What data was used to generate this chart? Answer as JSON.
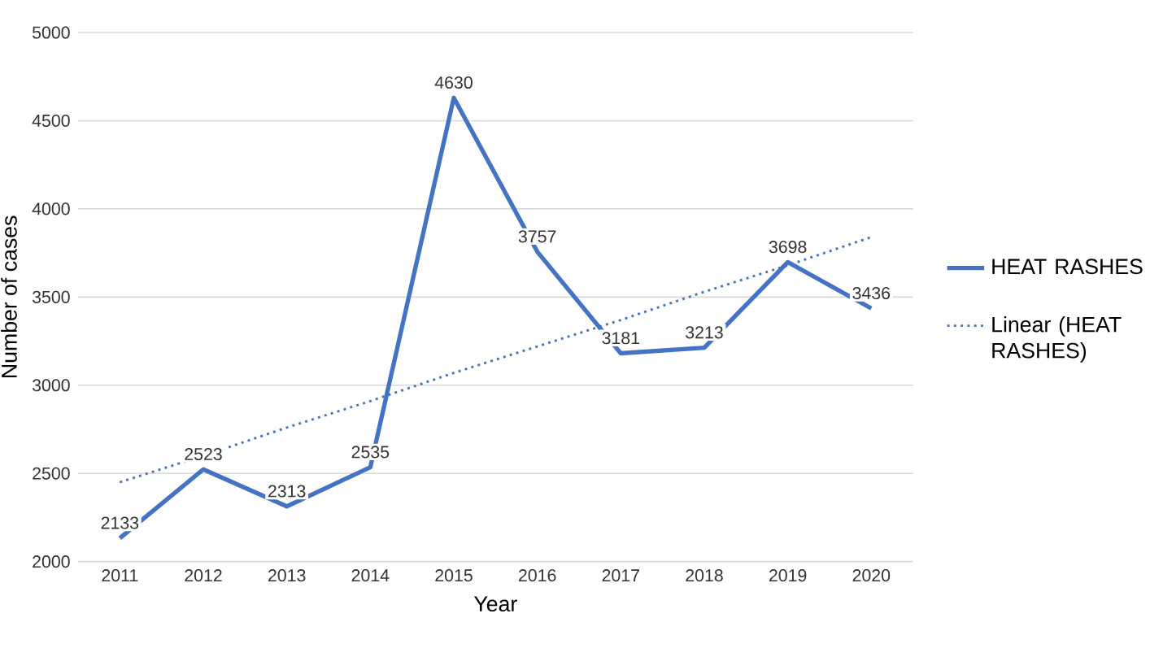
{
  "chart_data": {
    "type": "line",
    "xlabel": "Year",
    "ylabel": "Number of cases",
    "categories": [
      "2011",
      "2012",
      "2013",
      "2014",
      "2015",
      "2016",
      "2017",
      "2018",
      "2019",
      "2020"
    ],
    "series": [
      {
        "name": "HEAT RASHES",
        "color": "#4472c4",
        "values": [
          2133,
          2523,
          2313,
          2535,
          4630,
          3757,
          3181,
          3213,
          3698,
          3436
        ],
        "line_style": "solid"
      },
      {
        "name": "Linear (HEAT RASHES)",
        "color": "#4472c4",
        "type": "line",
        "values": [
          2450,
          2600,
          2760,
          2910,
          3070,
          3220,
          3370,
          3530,
          3680,
          3840
        ],
        "line_style": "dotted",
        "data_labels": false
      }
    ],
    "ylim": [
      2000,
      5000
    ],
    "yticks": [
      2000,
      2500,
      3000,
      3500,
      4000,
      4500,
      5000
    ],
    "grid": "y",
    "legend": "right",
    "marker": "none",
    "data_labels": true
  }
}
